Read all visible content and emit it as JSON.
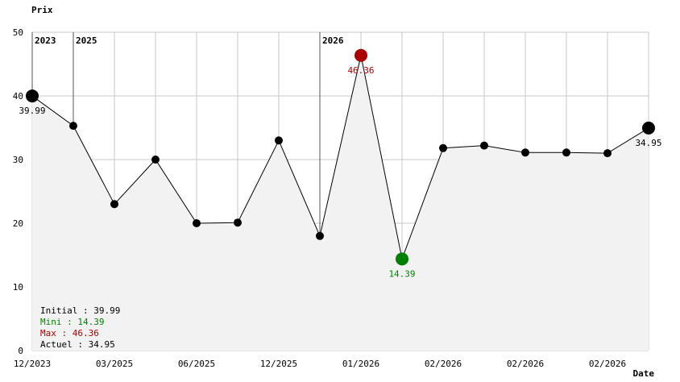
{
  "chart_data": {
    "type": "line",
    "ylabel": "Prix",
    "xlabel": "Date",
    "ylim": [
      0,
      50
    ],
    "yticks": [
      0,
      10,
      20,
      30,
      40,
      50
    ],
    "x_tick_labels": [
      "12/2023",
      "03/2025",
      "06/2025",
      "12/2025",
      "01/2026",
      "02/2026",
      "02/2026",
      "02/2026"
    ],
    "year_markers": [
      {
        "label": "2023",
        "index": 0
      },
      {
        "label": "2025",
        "index": 1
      },
      {
        "label": "2026",
        "index": 7
      }
    ],
    "values": [
      39.99,
      35.3,
      23.0,
      30.0,
      20.0,
      20.1,
      33.0,
      18.0,
      46.36,
      14.39,
      31.8,
      32.2,
      31.1,
      31.1,
      31.0,
      34.95
    ],
    "point_labels": [
      {
        "index": 0,
        "text": "39.99",
        "kind": "initial"
      },
      {
        "index": 8,
        "text": "46.36",
        "kind": "max"
      },
      {
        "index": 9,
        "text": "14.39",
        "kind": "min"
      },
      {
        "index": 15,
        "text": "34.95",
        "kind": "current"
      }
    ],
    "grid": true,
    "colors": {
      "line": "#000000",
      "fill": "#f2f2f2",
      "grid": "#c8c8c8",
      "min": "#008000",
      "max": "#aa0000",
      "normal": "#000000"
    }
  },
  "stats": [
    {
      "label": "Initial : 39.99",
      "color": "#000000"
    },
    {
      "label": "Mini : 14.39",
      "color": "#008000"
    },
    {
      "label": "Max : 46.36",
      "color": "#aa0000"
    },
    {
      "label": "Actuel : 34.95",
      "color": "#000000"
    }
  ]
}
